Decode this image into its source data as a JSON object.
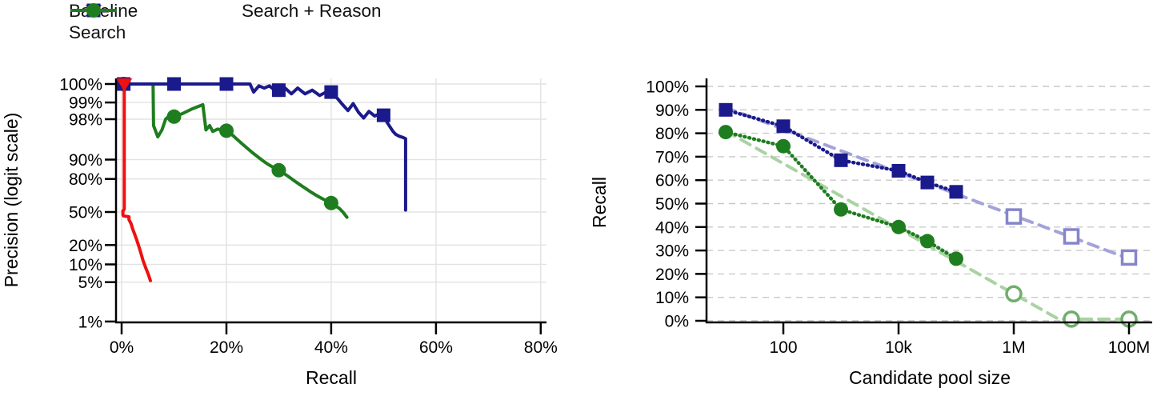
{
  "page": {
    "background": "#ffffff"
  },
  "chart_data": [
    {
      "id": "precision-recall",
      "type": "line",
      "title": "",
      "xlabel": "Recall",
      "ylabel": "Precision (logit scale)",
      "x_scale": "linear",
      "y_scale": "logit",
      "xlim": [
        0,
        80
      ],
      "x_ticks": [
        0,
        20,
        40,
        60,
        80
      ],
      "x_tick_labels": [
        "0%",
        "20%",
        "40%",
        "60%",
        "80%"
      ],
      "y_ticks": [
        100,
        99,
        98,
        90,
        80,
        50,
        20,
        10,
        5,
        1
      ],
      "y_tick_labels": [
        "100%",
        "99%",
        "98%",
        "90%",
        "80%",
        "50%",
        "20%",
        "10%",
        "5%",
        "1%"
      ],
      "grid": "solid-both",
      "legend_position": "top-left",
      "legend_series_order": [
        0,
        2,
        1
      ],
      "series": [
        {
          "name": "Baseline",
          "color": "#ee1111",
          "marker": "triangle-down",
          "line_style": "solid",
          "points": [
            [
              0.5,
              100
            ],
            [
              0.5,
              53
            ],
            [
              0.25,
              51
            ],
            [
              0.25,
              47
            ],
            [
              0.3,
              46
            ],
            [
              1.4,
              45
            ],
            [
              1.4,
              42
            ],
            [
              1.8,
              38
            ],
            [
              2.1,
              33
            ],
            [
              2.5,
              28
            ],
            [
              2.9,
              23.5
            ],
            [
              3.3,
              19
            ],
            [
              3.7,
              15
            ],
            [
              4.1,
              11.5
            ],
            [
              4.6,
              8.8
            ],
            [
              5.1,
              6.8
            ],
            [
              5.5,
              5.3
            ]
          ],
          "marker_points": [
            [
              0.5,
              100
            ]
          ]
        },
        {
          "name": "Search",
          "color": "#1e7d1e",
          "marker": "circle",
          "line_style": "solid",
          "points": [
            [
              0.4,
              100
            ],
            [
              6.0,
              100
            ],
            [
              6.1,
              97.4
            ],
            [
              6.9,
              95.9
            ],
            [
              7.7,
              96.9
            ],
            [
              8.4,
              98.0
            ],
            [
              9.2,
              98.3
            ],
            [
              10,
              98.2
            ],
            [
              11.5,
              98.4
            ],
            [
              13.5,
              98.7
            ],
            [
              15.5,
              98.9
            ],
            [
              16.1,
              96.9
            ],
            [
              16.8,
              97.4
            ],
            [
              17.4,
              96.7
            ],
            [
              18.3,
              97.0
            ],
            [
              19.2,
              96.9
            ],
            [
              20,
              96.8
            ],
            [
              21,
              96.3
            ],
            [
              22,
              95.5
            ],
            [
              23,
              94.6
            ],
            [
              24,
              93.5
            ],
            [
              25,
              92.3
            ],
            [
              26,
              91.0
            ],
            [
              27,
              89.5
            ],
            [
              28,
              88.0
            ],
            [
              29,
              86.6
            ],
            [
              30,
              85.2
            ],
            [
              31,
              83.4
            ],
            [
              32,
              81.2
            ],
            [
              33,
              78.6
            ],
            [
              34,
              76.0
            ],
            [
              35,
              73.2
            ],
            [
              36,
              70.2
            ],
            [
              37,
              67.2
            ],
            [
              38,
              64.4
            ],
            [
              39,
              61.8
            ],
            [
              40,
              59.3
            ],
            [
              40.8,
              56.5
            ],
            [
              41.6,
              53.5
            ],
            [
              42.3,
              49.5
            ],
            [
              43,
              44.5
            ]
          ],
          "marker_points": [
            [
              0.4,
              100
            ],
            [
              10,
              98.2
            ],
            [
              20,
              96.8
            ],
            [
              30,
              85.2
            ],
            [
              40,
              59.3
            ]
          ]
        },
        {
          "name": "Search + Reason",
          "color": "#1a1a8c",
          "marker": "square",
          "line_style": "solid",
          "points": [
            [
              0.4,
              100
            ],
            [
              24.5,
              100
            ],
            [
              25.2,
              99.35
            ],
            [
              26.2,
              99.5
            ],
            [
              27.2,
              99.45
            ],
            [
              28.2,
              99.5
            ],
            [
              29.2,
              99.4
            ],
            [
              30,
              99.4
            ],
            [
              31.2,
              99.45
            ],
            [
              32.4,
              99.3
            ],
            [
              33.6,
              99.45
            ],
            [
              35,
              99.3
            ],
            [
              36.4,
              99.4
            ],
            [
              37.8,
              99.25
            ],
            [
              39,
              99.35
            ],
            [
              40,
              99.35
            ],
            [
              41.2,
              99.15
            ],
            [
              42.2,
              98.9
            ],
            [
              43.2,
              98.6
            ],
            [
              44.2,
              98.95
            ],
            [
              45.2,
              98.5
            ],
            [
              46.2,
              98.1
            ],
            [
              47.2,
              98.55
            ],
            [
              48.3,
              98.25
            ],
            [
              49.2,
              98.4
            ],
            [
              50,
              98.3
            ],
            [
              50.7,
              97.7
            ],
            [
              51.3,
              97.2
            ],
            [
              51.8,
              96.7
            ],
            [
              52.3,
              96.3
            ],
            [
              53,
              96.0
            ],
            [
              53.7,
              95.8
            ],
            [
              54.2,
              95.6
            ],
            [
              54.2,
              52
            ]
          ],
          "marker_points": [
            [
              0.4,
              100
            ],
            [
              10,
              100
            ],
            [
              20,
              100
            ],
            [
              30,
              99.4
            ],
            [
              40,
              99.35
            ],
            [
              50,
              98.3
            ]
          ]
        }
      ]
    },
    {
      "id": "recall-vs-pool",
      "type": "line",
      "title": "",
      "xlabel": "Candidate pool size",
      "ylabel": "Recall",
      "x_scale": "log",
      "y_scale": "linear",
      "ylim": [
        0,
        100
      ],
      "x_ticks": [
        100,
        10000,
        1000000,
        100000000
      ],
      "x_tick_labels": [
        "100",
        "10k",
        "1M",
        "100M"
      ],
      "y_ticks": [
        0,
        10,
        20,
        30,
        40,
        50,
        60,
        70,
        80,
        90,
        100
      ],
      "y_tick_labels": [
        "0%",
        "10%",
        "20%",
        "30%",
        "40%",
        "50%",
        "60%",
        "70%",
        "80%",
        "90%",
        "100%"
      ],
      "grid": "dashed-horizontal",
      "legend_position": "top-center",
      "legend_series_order": [
        0,
        1
      ],
      "series": [
        {
          "name": "Search",
          "color": "#1e7d1e",
          "marker": "circle",
          "line_style": "dotted",
          "points": [
            [
              10,
              80.5
            ],
            [
              100,
              74.5
            ],
            [
              1000,
              47.5
            ],
            [
              10000,
              40
            ],
            [
              31600,
              34
            ],
            [
              100000,
              26.5
            ]
          ],
          "marker_points": [
            [
              10,
              80.5
            ],
            [
              100,
              74.5
            ],
            [
              1000,
              47.5
            ],
            [
              10000,
              40
            ],
            [
              31600,
              34
            ],
            [
              100000,
              26.5
            ]
          ],
          "trend": {
            "line_color": "#a9d3a2",
            "marker_color": "#6fae6b",
            "line_points": [
              [
                10,
                81
              ],
              [
                1000000,
                11.5
              ],
              [
                6000000,
                0.7
              ],
              [
                100000000,
                0.7
              ]
            ],
            "marker_points": [
              [
                1000000,
                11.5
              ],
              [
                10000000,
                0.7
              ],
              [
                100000000,
                0.7
              ]
            ]
          }
        },
        {
          "name": "Search + Reason",
          "color": "#1a1a8c",
          "marker": "square",
          "line_style": "dotted",
          "points": [
            [
              10,
              90
            ],
            [
              100,
              83
            ],
            [
              1000,
              68.5
            ],
            [
              10000,
              64
            ],
            [
              31600,
              59
            ],
            [
              100000,
              55
            ]
          ],
          "marker_points": [
            [
              10,
              90
            ],
            [
              100,
              83
            ],
            [
              1000,
              68.5
            ],
            [
              10000,
              64
            ],
            [
              31600,
              59
            ],
            [
              100000,
              55
            ]
          ],
          "trend": {
            "line_color": "#a3a3da",
            "marker_color": "#8585cc",
            "line_points": [
              [
                10,
                91
              ],
              [
                100000000,
                26.5
              ]
            ],
            "marker_points": [
              [
                1000000,
                44.5
              ],
              [
                10000000,
                36
              ],
              [
                100000000,
                27
              ]
            ]
          }
        }
      ]
    }
  ]
}
